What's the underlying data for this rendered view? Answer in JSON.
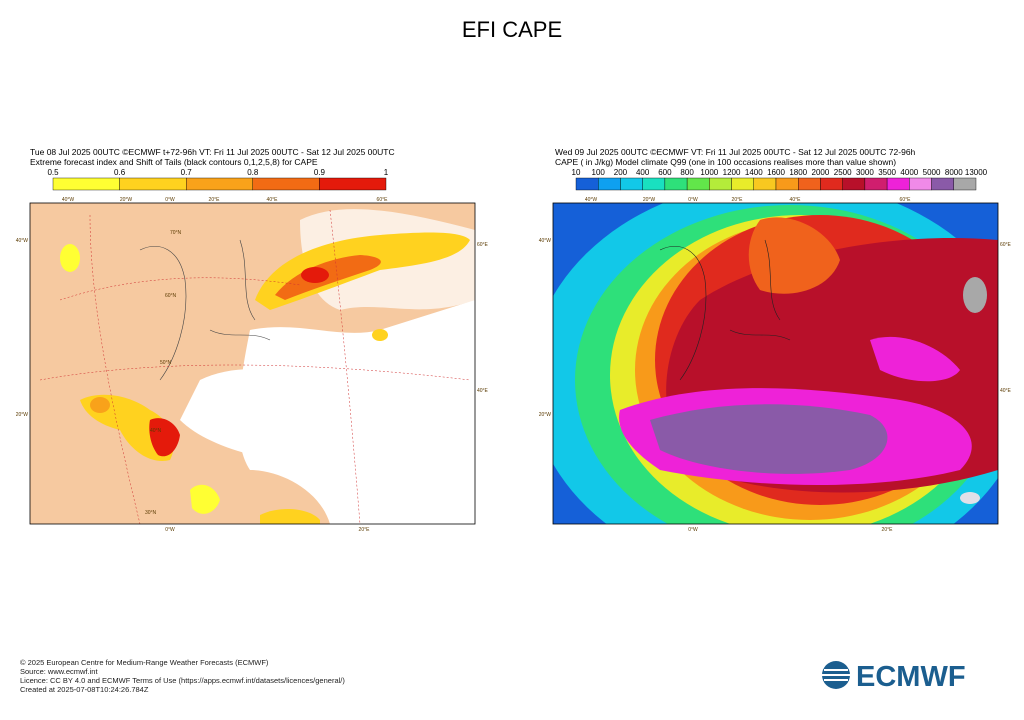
{
  "title": "EFI CAPE",
  "left_panel": {
    "header": [
      "Tue 08 Jul 2025 00UTC ©ECMWF t+72-96h  VT: Fri 11 Jul 2025 00UTC - Sat 12 Jul 2025 00UTC",
      "Extreme forecast index and Shift of Tails (black contours 0,1,2,5,8) for CAPE"
    ],
    "colorbar": {
      "labels": [
        0.5,
        0.6,
        0.7,
        0.8,
        0.9,
        1
      ],
      "colors": [
        "#ffff33",
        "#ffd21f",
        "#f9a21a",
        "#f26b14",
        "#e41a0b"
      ]
    },
    "map_labels": {
      "top": [
        "40°W",
        "20°W",
        "0°W",
        "20°E",
        "40°E",
        "60°E"
      ],
      "left": [
        "40°W",
        "20°W"
      ],
      "right": [
        "60°E",
        "40°E"
      ],
      "bottom": [
        "0°W",
        "20°E"
      ],
      "inner": [
        "70°N",
        "60°N",
        "50°N",
        "40°N",
        "30°N"
      ]
    }
  },
  "right_panel": {
    "header": [
      "Wed 09 Jul 2025 00UTC ©ECMWF VT: Fri 11 Jul 2025 00UTC - Sat 12 Jul 2025 00UTC   72-96h",
      "CAPE ( in J/kg)  Model climate Q99 (one in 100 occasions realises more than value shown)"
    ],
    "colorbar": {
      "labels": [
        10,
        100,
        200,
        400,
        600,
        800,
        1000,
        1200,
        1400,
        1600,
        1800,
        2000,
        2500,
        3000,
        3500,
        4000,
        5000,
        8000,
        13000
      ],
      "colors": [
        "#1560d8",
        "#0ea0f0",
        "#12c8e8",
        "#19e0c0",
        "#2ee07a",
        "#62e64a",
        "#b4ec3a",
        "#e8ec2a",
        "#f8c820",
        "#f89a1a",
        "#f0621c",
        "#e02a1e",
        "#b8102a",
        "#d01e6e",
        "#ee22d8",
        "#f08ae8",
        "#8a5aa8",
        "#a8a8a8"
      ]
    },
    "map_labels": {
      "top": [
        "40°W",
        "20°W",
        "0°W",
        "20°E",
        "40°E",
        "60°E"
      ],
      "left": [
        "40°W",
        "20°W"
      ],
      "right": [
        "60°E",
        "40°E"
      ],
      "bottom": [
        "0°W",
        "20°E"
      ]
    }
  },
  "footer": [
    "© 2025 European Centre for Medium-Range Weather Forecasts (ECMWF)",
    "Source: www.ecmwf.int",
    "Licence: CC BY 4.0 and ECMWF Terms of Use (https://apps.ecmwf.int/datasets/licences/general/)",
    "Created at 2025-07-08T10:24:26.784Z"
  ],
  "logo": "ECMWF"
}
